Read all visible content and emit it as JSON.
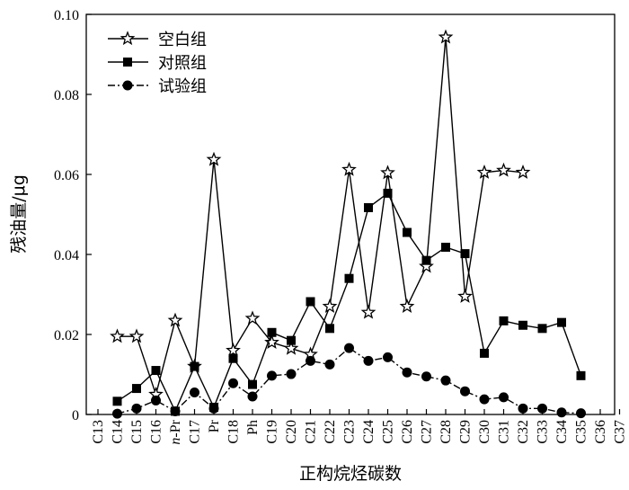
{
  "chart_data": {
    "type": "line",
    "xlabel": "正构烷烃碳数",
    "ylabel": "残油量/μg",
    "ylim": [
      0,
      0.1
    ],
    "yticks": [
      "0",
      "0.02",
      "0.04",
      "0.06",
      "0.08",
      "0.10"
    ],
    "categories": [
      "C13",
      "C14",
      "C15",
      "C16",
      "n-Pr",
      "C17",
      "Pr",
      "C18",
      "Ph",
      "C19",
      "C20",
      "C21",
      "C22",
      "C23",
      "C24",
      "C25",
      "C26",
      "C27",
      "C28",
      "C29",
      "C30",
      "C31",
      "C32",
      "C33",
      "C34",
      "C35",
      "C36",
      "C37"
    ],
    "legend_position": "top-left",
    "series": [
      {
        "name": "空白组",
        "marker": "star",
        "line_style": "solid",
        "color": "#000000",
        "values": [
          null,
          0.0195,
          0.0195,
          0.005,
          0.0235,
          0.012,
          0.0637,
          0.016,
          0.024,
          0.018,
          0.0165,
          0.015,
          0.027,
          0.0612,
          0.0255,
          0.0604,
          0.027,
          0.037,
          0.0943,
          0.0295,
          0.0605,
          0.061,
          0.0605,
          null,
          null,
          null,
          null,
          null
        ]
      },
      {
        "name": "对照组",
        "marker": "square",
        "line_style": "solid",
        "color": "#000000",
        "values": [
          null,
          0.0033,
          0.0065,
          0.011,
          0.0008,
          0.012,
          0.0018,
          0.014,
          0.0075,
          0.0205,
          0.0185,
          0.0282,
          0.0215,
          0.034,
          0.0517,
          0.0553,
          0.0455,
          0.0385,
          0.0418,
          0.0402,
          0.0153,
          0.0234,
          0.0223,
          0.0215,
          0.023,
          0.0097,
          null,
          null
        ]
      },
      {
        "name": "试验组",
        "marker": "circle",
        "line_style": "dash-dot",
        "color": "#000000",
        "values": [
          null,
          0.0002,
          0.0015,
          0.0035,
          0.0008,
          0.0055,
          0.0015,
          0.0078,
          0.0045,
          0.0097,
          0.0101,
          0.0134,
          0.0125,
          0.0166,
          0.0134,
          0.0143,
          0.0105,
          0.0095,
          0.0085,
          0.0058,
          0.0038,
          0.0043,
          0.0015,
          0.0015,
          0.0005,
          0.0003,
          null,
          null
        ]
      }
    ]
  }
}
